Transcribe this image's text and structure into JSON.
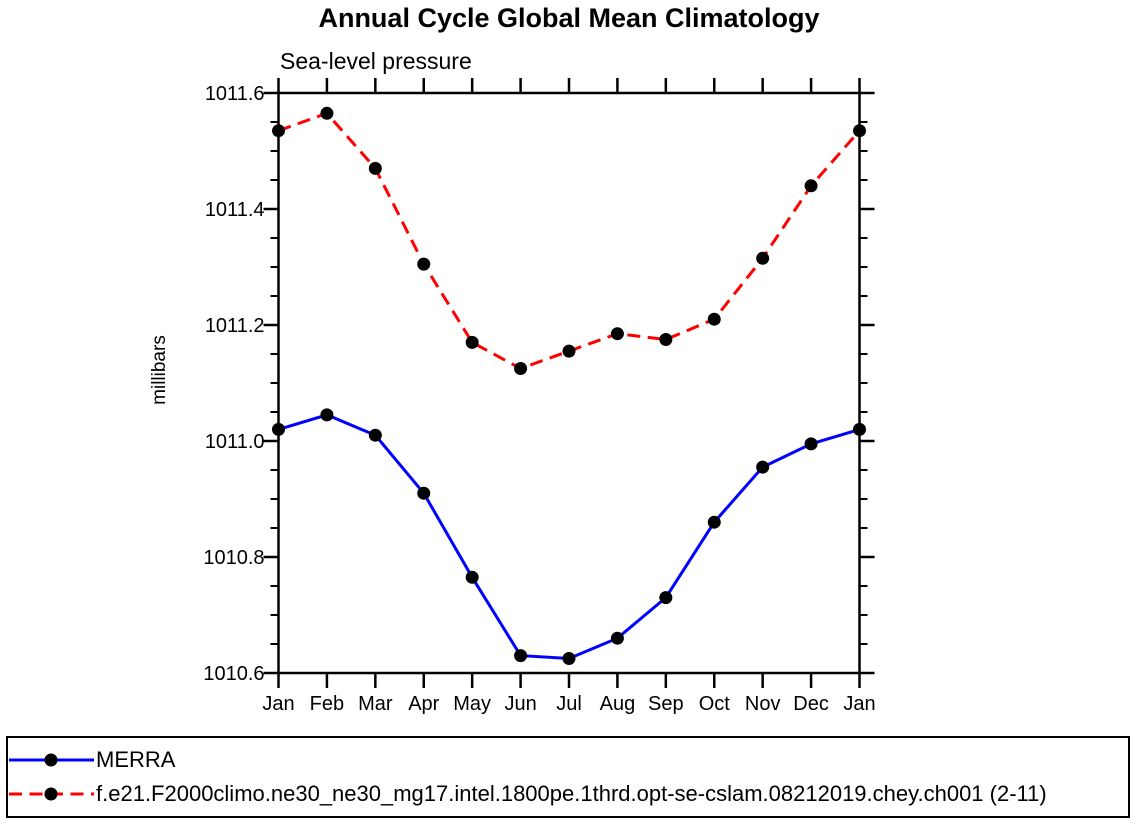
{
  "chart_data": {
    "type": "line",
    "title": "Annual Cycle Global Mean Climatology",
    "subtitle": "Sea-level pressure",
    "ylabel": "millibars",
    "xlabel": "",
    "categories": [
      "Jan",
      "Feb",
      "Mar",
      "Apr",
      "May",
      "Jun",
      "Jul",
      "Aug",
      "Sep",
      "Oct",
      "Nov",
      "Dec",
      "Jan"
    ],
    "ylim": [
      1010.6,
      1011.6
    ],
    "ytick_labels": [
      "1011.6",
      "1011.4",
      "1011.2",
      "1011.0",
      "1010.8",
      "1010.6"
    ],
    "ytick_major_values": [
      1011.6,
      1011.4,
      1011.2,
      1011.0,
      1010.8,
      1010.6
    ],
    "ytick_minor_interval": 0.05,
    "grid": false,
    "legend_position": "bottom",
    "axis_color": "#000000",
    "marker_color": "#000000",
    "series": [
      {
        "name": "MERRA",
        "color": "#0000ff",
        "line_style": "solid",
        "marker": "filled-circle",
        "values": [
          1011.02,
          1011.045,
          1011.01,
          1010.91,
          1010.765,
          1010.63,
          1010.625,
          1010.66,
          1010.73,
          1010.86,
          1010.955,
          1010.995,
          1011.02
        ]
      },
      {
        "name": "f.e21.F2000climo.ne30_ne30_mg17.intel.1800pe.1thrd.opt-se-cslam.08212019.chey.ch001 (2-11)",
        "color": "#ff0000",
        "line_style": "dashed",
        "marker": "filled-circle",
        "values": [
          1011.535,
          1011.565,
          1011.47,
          1011.305,
          1011.17,
          1011.125,
          1011.155,
          1011.185,
          1011.175,
          1011.21,
          1011.315,
          1011.44,
          1011.535
        ]
      }
    ]
  }
}
